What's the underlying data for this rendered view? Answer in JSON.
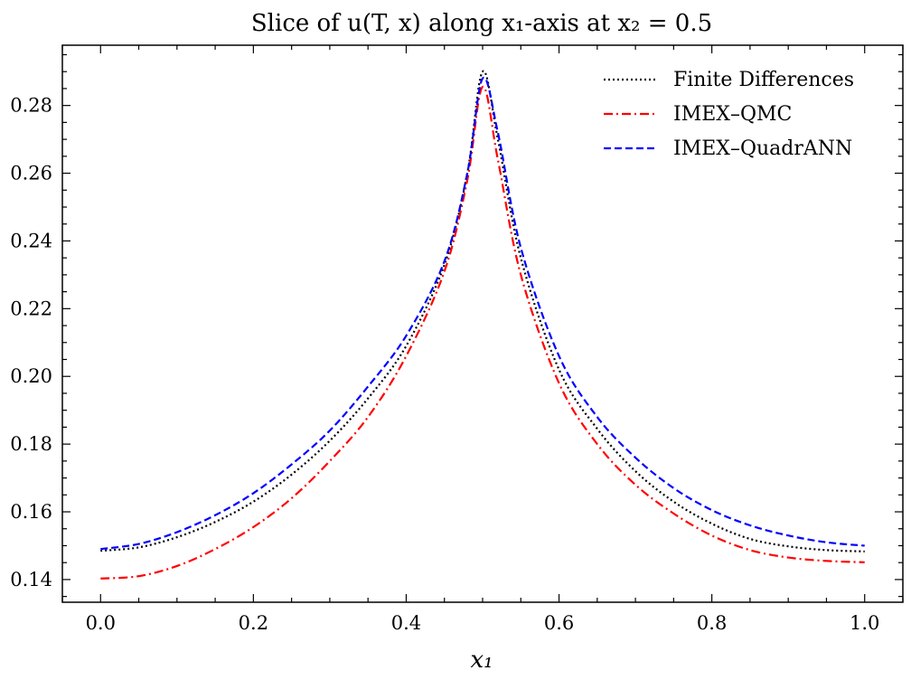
{
  "chart_data": {
    "type": "line",
    "title": "Slice of u(T, x) along x₁-axis at x₂ = 0.5",
    "xlabel": "x₁",
    "ylabel": "",
    "xlim": [
      -0.05,
      1.05
    ],
    "ylim": [
      0.1333,
      0.2978
    ],
    "xticks": [
      0.0,
      0.2,
      0.4,
      0.6,
      0.8,
      1.0
    ],
    "xtick_labels": [
      "0.0",
      "0.2",
      "0.4",
      "0.6",
      "0.8",
      "1.0"
    ],
    "yticks": [
      0.14,
      0.16,
      0.18,
      0.2,
      0.22,
      0.24,
      0.26,
      0.28
    ],
    "ytick_labels": [
      "0.14",
      "0.16",
      "0.18",
      "0.20",
      "0.22",
      "0.24",
      "0.26",
      "0.28"
    ],
    "legend_position": "top-right",
    "grid": false,
    "x": [
      0.0,
      0.05,
      0.1,
      0.15,
      0.2,
      0.25,
      0.3,
      0.35,
      0.4,
      0.45,
      0.48,
      0.5,
      0.52,
      0.55,
      0.6,
      0.65,
      0.7,
      0.75,
      0.8,
      0.85,
      0.9,
      0.95,
      1.0
    ],
    "series": [
      {
        "name": "Finite Differences",
        "color": "#000000",
        "style": "dotted",
        "values": [
          0.1485,
          0.1495,
          0.1525,
          0.157,
          0.163,
          0.171,
          0.181,
          0.1935,
          0.209,
          0.233,
          0.26,
          0.29,
          0.27,
          0.235,
          0.202,
          0.1845,
          0.172,
          0.163,
          0.1565,
          0.152,
          0.1498,
          0.1487,
          0.1483
        ]
      },
      {
        "name": "IMEX–QMC",
        "color": "#ff0000",
        "style": "dashdot",
        "values": [
          0.1403,
          0.141,
          0.144,
          0.149,
          0.1555,
          0.164,
          0.175,
          0.188,
          0.206,
          0.231,
          0.258,
          0.2855,
          0.264,
          0.23,
          0.198,
          0.18,
          0.168,
          0.1595,
          0.153,
          0.1487,
          0.1465,
          0.1455,
          0.1451
        ]
      },
      {
        "name": "IMEX–QuadrANN",
        "color": "#0000ff",
        "style": "dashed",
        "values": [
          0.149,
          0.1505,
          0.154,
          0.159,
          0.1655,
          0.174,
          0.184,
          0.197,
          0.212,
          0.234,
          0.26,
          0.288,
          0.272,
          0.238,
          0.206,
          0.188,
          0.176,
          0.167,
          0.1605,
          0.156,
          0.153,
          0.151,
          0.15
        ]
      }
    ]
  }
}
